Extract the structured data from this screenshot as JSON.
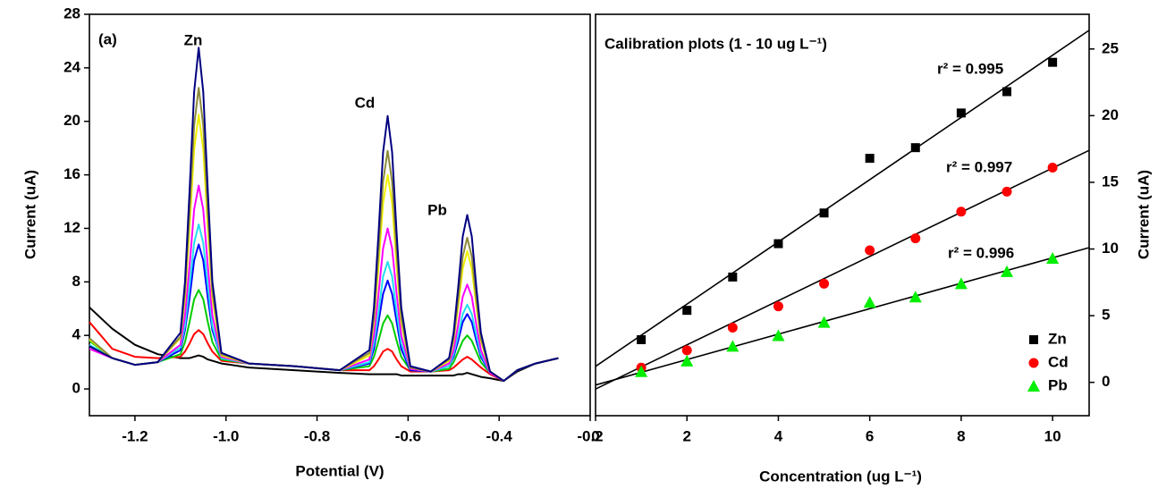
{
  "chart_data": [
    {
      "type": "line",
      "panel_label": "(a)",
      "x_label": "Potential (V)",
      "y_label": "Current (uA)",
      "annotations": [
        "Zn",
        "Cd",
        "Pb"
      ],
      "xlim": [
        -1.3,
        -0.2
      ],
      "ylim": [
        -2,
        28
      ],
      "xticks": [
        -1.2,
        {
          "value": -1,
          "label": "-1.0"
        },
        -0.8,
        -0.6,
        -0.4,
        -0.2
      ],
      "yticks": [
        0,
        4,
        8,
        12,
        16,
        20,
        24,
        28
      ],
      "x": [
        -1.3,
        -1.25,
        -1.2,
        -1.15,
        -1.1,
        -1.09,
        -1.08,
        -1.07,
        -1.06,
        -1.05,
        -1.04,
        -1.03,
        -1.01,
        -0.95,
        -0.85,
        -0.75,
        -0.685,
        -0.675,
        -0.665,
        -0.655,
        -0.645,
        -0.635,
        -0.625,
        -0.615,
        -0.595,
        -0.55,
        -0.51,
        -0.5,
        -0.49,
        -0.48,
        -0.47,
        -0.46,
        -0.45,
        -0.44,
        -0.42,
        -0.39,
        -0.36,
        -0.32,
        -0.27
      ],
      "series": [
        {
          "color": "#000000",
          "values": [
            6.1,
            4.5,
            3.3,
            2.6,
            2.3,
            2.3,
            2.3,
            2.4,
            2.5,
            2.4,
            2.2,
            2.1,
            1.9,
            1.6,
            1.4,
            1.2,
            1.1,
            1.1,
            1.1,
            1.1,
            1.1,
            1.1,
            1.1,
            1.0,
            1.0,
            1.0,
            1.0,
            1.0,
            1.1,
            1.1,
            1.2,
            1.1,
            1.0,
            0.9,
            0.8,
            0.6,
            1.3,
            1.9,
            2.3
          ]
        },
        {
          "color": "#ff0000",
          "values": [
            5.0,
            3.0,
            2.4,
            2.3,
            2.4,
            2.8,
            3.4,
            4.1,
            4.4,
            4.1,
            3.4,
            2.8,
            2.1,
            1.9,
            1.7,
            1.4,
            1.4,
            1.7,
            2.2,
            2.8,
            3.0,
            2.8,
            2.2,
            1.7,
            1.3,
            1.3,
            1.4,
            1.6,
            1.9,
            2.2,
            2.4,
            2.2,
            1.9,
            1.6,
            1.1,
            0.6,
            1.4,
            1.9,
            2.3
          ]
        },
        {
          "color": "#00cc00",
          "values": [
            3.6,
            2.3,
            1.8,
            2.0,
            2.6,
            3.5,
            5.0,
            6.7,
            7.4,
            6.7,
            5.0,
            3.5,
            2.2,
            1.9,
            1.7,
            1.4,
            1.7,
            2.4,
            3.6,
            4.9,
            5.5,
            4.9,
            3.6,
            2.4,
            1.4,
            1.3,
            1.5,
            2.0,
            2.8,
            3.6,
            4.0,
            3.6,
            2.8,
            2.0,
            1.2,
            0.6,
            1.4,
            1.9,
            2.3
          ]
        },
        {
          "color": "#0000ff",
          "values": [
            3.2,
            2.3,
            1.8,
            2.0,
            2.9,
            4.4,
            6.8,
            9.6,
            10.8,
            9.6,
            6.8,
            4.4,
            2.3,
            1.9,
            1.7,
            1.4,
            1.9,
            3.0,
            5.0,
            7.1,
            8.1,
            7.1,
            5.0,
            3.0,
            1.4,
            1.3,
            1.7,
            2.4,
            3.6,
            5.0,
            5.6,
            5.0,
            3.6,
            2.4,
            1.2,
            0.6,
            1.4,
            1.9,
            2.3
          ]
        },
        {
          "color": "#22e0f0",
          "values": [
            3.3,
            2.3,
            1.8,
            2.0,
            3.1,
            4.7,
            7.7,
            10.9,
            12.3,
            10.9,
            7.7,
            4.7,
            2.3,
            1.9,
            1.7,
            1.4,
            2.0,
            3.4,
            5.7,
            8.4,
            9.5,
            8.4,
            5.7,
            3.4,
            1.5,
            1.3,
            1.7,
            2.6,
            4.0,
            5.6,
            6.3,
            5.6,
            4.0,
            2.6,
            1.2,
            0.6,
            1.4,
            1.9,
            2.3
          ]
        },
        {
          "color": "#ff00ff",
          "values": [
            3.0,
            2.3,
            1.8,
            2.0,
            3.3,
            5.5,
            9.2,
            13.4,
            15.2,
            13.4,
            9.2,
            5.5,
            2.4,
            1.9,
            1.7,
            1.4,
            2.2,
            4.0,
            7.1,
            10.5,
            12.0,
            10.5,
            7.1,
            4.0,
            1.5,
            1.3,
            1.9,
            2.9,
            4.8,
            6.9,
            7.8,
            6.9,
            4.8,
            2.9,
            1.2,
            0.6,
            1.4,
            1.9,
            2.3
          ]
        },
        {
          "color": "#f0f000",
          "values": [
            3.7,
            2.3,
            1.8,
            2.0,
            3.8,
            6.8,
            12.1,
            17.9,
            20.5,
            17.9,
            12.1,
            6.8,
            2.5,
            1.9,
            1.7,
            1.4,
            2.5,
            5.0,
            9.2,
            13.9,
            16.0,
            13.9,
            9.2,
            5.0,
            1.6,
            1.3,
            2.1,
            3.6,
            6.2,
            9.0,
            10.3,
            9.0,
            6.2,
            3.6,
            1.3,
            0.6,
            1.4,
            1.9,
            2.3
          ]
        },
        {
          "color": "#8c8a3a",
          "values": [
            3.8,
            2.3,
            1.8,
            2.0,
            3.9,
            7.3,
            13.2,
            19.7,
            22.5,
            19.7,
            13.2,
            7.3,
            2.6,
            1.9,
            1.7,
            1.4,
            2.7,
            5.4,
            10.2,
            15.5,
            17.8,
            15.5,
            10.2,
            5.4,
            1.6,
            1.3,
            2.2,
            3.8,
            6.7,
            9.9,
            11.3,
            9.9,
            6.7,
            3.8,
            1.3,
            0.6,
            1.4,
            1.9,
            2.3
          ]
        },
        {
          "color": "#000080",
          "values": [
            3.2,
            2.3,
            1.8,
            2.0,
            4.2,
            8.0,
            14.8,
            22.2,
            25.5,
            22.2,
            14.8,
            8.0,
            2.7,
            1.9,
            1.7,
            1.4,
            2.9,
            6.1,
            11.6,
            17.7,
            20.4,
            17.7,
            11.6,
            6.1,
            1.7,
            1.3,
            2.3,
            4.2,
            7.6,
            11.4,
            13.0,
            11.4,
            7.6,
            4.2,
            1.3,
            0.6,
            1.4,
            1.9,
            2.3
          ]
        }
      ]
    },
    {
      "type": "scatter",
      "title": "Calibration plots (1 - 10 ug L⁻¹)",
      "x_label": "Concentration (ug L⁻¹)",
      "y_label": "Current (uA)",
      "y_axis_side": "right",
      "legend": "lower right",
      "xlim": [
        0,
        10.8
      ],
      "ylim": [
        -2.5,
        27.6
      ],
      "xticks": [
        0,
        2,
        4,
        6,
        8,
        10
      ],
      "yticks": [
        0,
        5,
        10,
        15,
        20,
        25
      ],
      "x": [
        1,
        2,
        3,
        4,
        5,
        6,
        7,
        8,
        9,
        10
      ],
      "series": [
        {
          "name": "Zn",
          "color": "#000000",
          "marker": "square",
          "values": [
            3.2,
            5.4,
            7.9,
            10.4,
            12.7,
            16.8,
            17.6,
            20.2,
            21.8,
            24.0
          ]
        },
        {
          "name": "Cd",
          "color": "#ff0000",
          "marker": "circle",
          "values": [
            1.1,
            2.4,
            4.1,
            5.7,
            7.4,
            9.9,
            10.8,
            12.8,
            14.3,
            16.1
          ]
        },
        {
          "name": "Pb",
          "color": "#00ee00",
          "marker": "triangle",
          "values": [
            0.8,
            1.6,
            2.7,
            3.5,
            4.5,
            6.0,
            6.4,
            7.4,
            8.3,
            9.3
          ]
        }
      ],
      "fits": [
        {
          "color": "#000000",
          "x": [
            0,
            10.8
          ],
          "values": [
            1.2,
            26.4
          ],
          "label": "r² = 0.995"
        },
        {
          "color": "#000000",
          "x": [
            0,
            10.8
          ],
          "values": [
            -0.5,
            17.4
          ],
          "label": "r² = 0.997"
        },
        {
          "color": "#000000",
          "x": [
            0,
            10.8
          ],
          "values": [
            -0.2,
            10.1
          ],
          "label": "r² = 0.996"
        }
      ]
    }
  ]
}
